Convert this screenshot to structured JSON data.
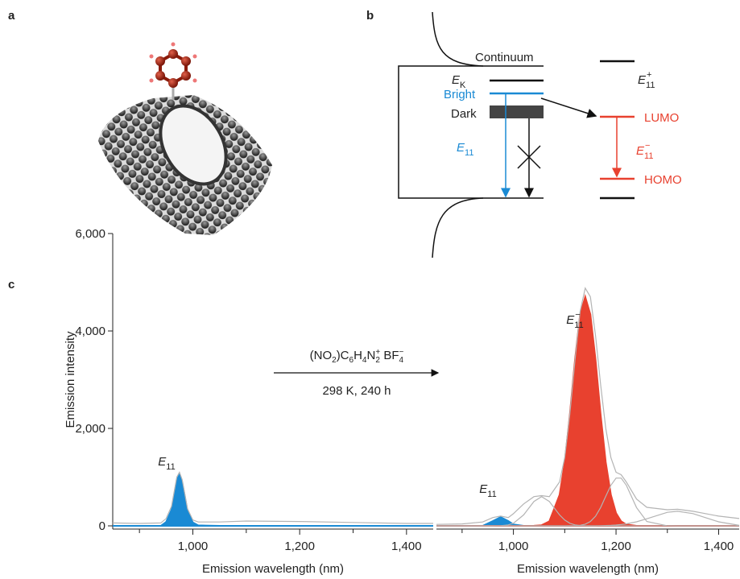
{
  "panel_labels": [
    "a",
    "b",
    "c"
  ],
  "diagram": {
    "continuum": "Continuum",
    "ek": {
      "main": "E",
      "sub": "K"
    },
    "bright": "Bright",
    "dark": "Dark",
    "e11": {
      "main": "E",
      "sub": "11"
    },
    "e11_plus": {
      "main": "E",
      "sub": "11",
      "sup": "+"
    },
    "lumo": "LUMO",
    "e11_minus": {
      "main": "E",
      "sub": "11",
      "sup": "−"
    },
    "homo": "HOMO"
  },
  "reaction": {
    "reagent": [
      {
        "base": "(NO"
      },
      {
        "sub": "2"
      },
      {
        "base": ")C"
      },
      {
        "sub": "6"
      },
      {
        "base": "H"
      },
      {
        "sub": "4"
      },
      {
        "base": "N"
      },
      {
        "sub": "2"
      },
      {
        "sup": "+"
      },
      {
        "base": " BF"
      },
      {
        "sub": "4"
      },
      {
        "sup": "−"
      }
    ],
    "conditions": "298 K, 240 h"
  },
  "chart_data": [
    {
      "type": "line",
      "x": [
        850,
        900,
        940,
        950,
        960,
        965,
        970,
        975,
        980,
        985,
        990,
        1000,
        1010,
        1050,
        1100,
        1200,
        1300,
        1400,
        1450
      ],
      "xlim": [
        850,
        1450
      ],
      "ylim": [
        0,
        6000
      ],
      "xticks": [
        {
          "value": 1000,
          "label": "1,000"
        },
        {
          "value": 1200,
          "label": "1,200"
        },
        {
          "value": 1400,
          "label": "1,400"
        }
      ],
      "xminor": [
        900,
        1100,
        1300
      ],
      "yticks": [
        0,
        {
          "value": 2000,
          "label": "2,000"
        },
        {
          "value": 4000,
          "label": "4,000"
        },
        {
          "value": 6000,
          "label": "6,000"
        }
      ],
      "xlabel": "Emission wavelength (nm)",
      "ylabel": "Emission intensity",
      "series": [
        {
          "color": "#1a8ad4",
          "fill": true,
          "values": [
            0,
            0,
            0,
            80,
            330,
            640,
            950,
            1050,
            900,
            600,
            300,
            70,
            10,
            0,
            0,
            0,
            0,
            0,
            0
          ]
        },
        {
          "color": "#b4b4b4",
          "fill": false,
          "values": [
            60,
            50,
            60,
            150,
            400,
            700,
            1000,
            1100,
            950,
            650,
            350,
            120,
            80,
            80,
            100,
            90,
            70,
            50,
            50
          ]
        }
      ],
      "annotations": [
        {
          "main": "E",
          "sub": "11"
        }
      ]
    },
    {
      "type": "line",
      "x": [
        850,
        900,
        940,
        960,
        975,
        990,
        1000,
        1020,
        1040,
        1055,
        1070,
        1090,
        1100,
        1110,
        1120,
        1130,
        1140,
        1150,
        1160,
        1170,
        1180,
        1190,
        1200,
        1210,
        1220,
        1240,
        1260,
        1300,
        1320,
        1350,
        1400,
        1440
      ],
      "xlim": [
        850,
        1440
      ],
      "ylim": [
        0,
        6000
      ],
      "xticks": [
        {
          "value": 1000,
          "label": "1,000"
        },
        {
          "value": 1200,
          "label": "1,200"
        },
        {
          "value": 1400,
          "label": "1,400"
        }
      ],
      "xminor": [
        900,
        1100,
        1300
      ],
      "xlabel": "Emission wavelength (nm)",
      "series": [
        {
          "color": "#1a8ad4",
          "fill": true,
          "values": [
            0,
            0,
            0,
            100,
            180,
            100,
            30,
            0,
            0,
            0,
            0,
            0,
            0,
            0,
            0,
            0,
            0,
            0,
            0,
            0,
            0,
            0,
            0,
            0,
            0,
            0,
            0,
            0,
            0,
            0,
            0,
            0
          ]
        },
        {
          "color": "#e8412f",
          "fill": true,
          "values": [
            0,
            0,
            0,
            0,
            0,
            0,
            0,
            0,
            2,
            14,
            93,
            636,
            1307,
            2288,
            3413,
            4339,
            4700,
            4339,
            3413,
            2288,
            1307,
            636,
            263,
            93,
            28,
            0,
            0,
            0,
            0,
            0,
            0,
            0
          ]
        },
        {
          "color": "#b4b4b4",
          "fill": false,
          "values": [
            30,
            40,
            80,
            170,
            200,
            170,
            250,
            450,
            600,
            620,
            600,
            900,
            1400,
            2300,
            3400,
            4400,
            4880,
            4700,
            3900,
            2900,
            2000,
            1400,
            1100,
            1050,
            900,
            550,
            380,
            330,
            340,
            300,
            200,
            150
          ]
        },
        {
          "color": "#b4b4b4",
          "fill": false,
          "values": [
            0,
            0,
            0,
            0,
            4,
            20,
            53,
            225,
            501,
            600,
            501,
            225,
            119,
            53,
            20,
            7,
            2,
            0,
            0,
            0,
            0,
            0,
            0,
            0,
            0,
            0,
            0,
            0,
            0,
            0,
            0,
            0
          ]
        },
        {
          "color": "#b4b4b4",
          "fill": false,
          "values": [
            0,
            0,
            0,
            0,
            0,
            0,
            0,
            0,
            0,
            0,
            0,
            0,
            0,
            1,
            3,
            11,
            34,
            89,
            198,
            375,
            607,
            835,
            980,
            980,
            835,
            375,
            89,
            1,
            0,
            0,
            0,
            0
          ]
        },
        {
          "color": "#b4b4b4",
          "fill": false,
          "values": [
            0,
            0,
            0,
            0,
            0,
            0,
            0,
            0,
            0,
            0,
            0,
            0,
            0,
            0,
            0,
            0,
            0,
            0,
            0,
            3,
            6,
            10,
            17,
            27,
            41,
            83,
            146,
            277,
            300,
            251,
            83,
            10
          ]
        }
      ],
      "annotations": [
        {
          "main": "E",
          "sub": "11"
        },
        {
          "main": "E",
          "sub": "11",
          "sup": "−"
        }
      ]
    }
  ]
}
